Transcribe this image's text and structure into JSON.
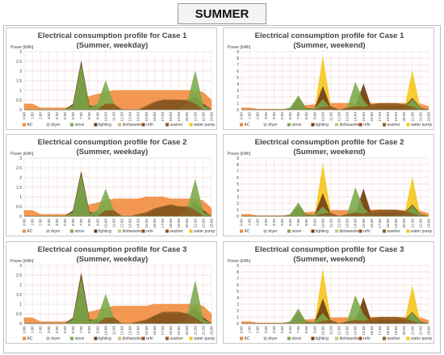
{
  "banner": "SUMMER",
  "ylabel": "Power [kWh]",
  "hours": [
    "0:00",
    "1:00",
    "2:00",
    "3:00",
    "4:00",
    "5:00",
    "6:00",
    "7:00",
    "8:00",
    "9:00",
    "10:00",
    "11:00",
    "12:00",
    "13:00",
    "14:00",
    "15:00",
    "16:00",
    "17:00",
    "18:00",
    "19:00",
    "20:00",
    "21:00",
    "22:00",
    "23:00"
  ],
  "legend": [
    "AC",
    "dryer",
    "stove",
    "lighting",
    "dishwasher",
    "refri",
    "washer",
    "water pump"
  ],
  "colors": {
    "AC": "#f08a3a",
    "dryer": "#b8b8b8",
    "stove": "#7aaa4a",
    "lighting": "#6d3a14",
    "dishwasher": "#d4c070",
    "refri": "#a0441a",
    "washer": "#8b5a20",
    "water pump": "#f5c518"
  },
  "panels": [
    {
      "title1": "Electrical consumption profile for Case 1",
      "title2": "(Summer, weekday)",
      "ymax": 3,
      "yticks": [
        "0",
        "0.5",
        "1",
        "1.5",
        "2",
        "2.5",
        "3"
      ]
    },
    {
      "title1": "Electrical consumption profile for Case 1",
      "title2": "(Summer, weekend)",
      "ymax": 9,
      "yticks": [
        "0",
        "1",
        "2",
        "3",
        "4",
        "5",
        "6",
        "7",
        "8",
        "9"
      ]
    },
    {
      "title1": "Electrical consumption profile for Case 2",
      "title2": "(Summer, weekday)",
      "ymax": 3,
      "yticks": [
        "0",
        "0.5",
        "1",
        "1.5",
        "2",
        "2.5",
        "3"
      ]
    },
    {
      "title1": "Electrical consumption profile for Case 2",
      "title2": "(Summer, weekend)",
      "ymax": 9,
      "yticks": [
        "0",
        "1",
        "2",
        "3",
        "4",
        "5",
        "6",
        "7",
        "8",
        "9"
      ]
    },
    {
      "title1": "Electrical consumption profile for Case 3",
      "title2": "(Summer, weekday)",
      "ymax": 3,
      "yticks": [
        "0",
        "0.5",
        "1",
        "1.5",
        "2",
        "2.5",
        "3"
      ]
    },
    {
      "title1": "Electrical consumption profile for Case 3",
      "title2": "(Summer, weekend)",
      "ymax": 9,
      "yticks": [
        "0",
        "1",
        "2",
        "3",
        "4",
        "5",
        "6",
        "7",
        "8",
        "9"
      ]
    }
  ],
  "chart_data": [
    {
      "type": "area",
      "ylim": [
        0,
        3
      ],
      "x": [
        "0:00",
        "1:00",
        "2:00",
        "3:00",
        "4:00",
        "5:00",
        "6:00",
        "7:00",
        "8:00",
        "9:00",
        "10:00",
        "11:00",
        "12:00",
        "13:00",
        "14:00",
        "15:00",
        "16:00",
        "17:00",
        "18:00",
        "19:00",
        "20:00",
        "21:00",
        "22:00",
        "23:00"
      ],
      "series": [
        {
          "name": "AC",
          "values": [
            0.3,
            0.3,
            0.1,
            0.1,
            0.1,
            0.1,
            0.2,
            0.5,
            0.7,
            0.8,
            0.9,
            1.0,
            1.0,
            1.0,
            1.0,
            1.0,
            1.0,
            1.0,
            1.0,
            1.0,
            1.0,
            1.0,
            0.9,
            0.5
          ]
        },
        {
          "name": "lighting",
          "values": [
            0,
            0,
            0,
            0,
            0,
            0,
            0.3,
            2.5,
            0.2,
            0.2,
            0.2,
            0.2,
            0,
            0,
            0,
            0.1,
            0.3,
            0.5,
            0.5,
            0.5,
            0.4,
            0.7,
            0.3,
            0
          ]
        },
        {
          "name": "stove",
          "values": [
            0,
            0,
            0,
            0,
            0,
            0,
            0.2,
            2.3,
            0.1,
            0.3,
            1.5,
            0.3,
            0,
            0,
            0,
            0,
            0,
            0,
            0,
            0,
            0.3,
            2.0,
            0.2,
            0
          ]
        },
        {
          "name": "washer",
          "values": [
            0,
            0,
            0,
            0,
            0,
            0,
            0,
            0,
            0,
            0,
            0.3,
            0.3,
            0,
            0,
            0,
            0.2,
            0.4,
            0.5,
            0.5,
            0.5,
            0.5,
            0.3,
            0,
            0
          ]
        }
      ]
    },
    {
      "type": "area",
      "ylim": [
        0,
        9
      ],
      "x": [
        "0:00",
        "1:00",
        "2:00",
        "3:00",
        "4:00",
        "5:00",
        "6:00",
        "7:00",
        "8:00",
        "9:00",
        "10:00",
        "11:00",
        "12:00",
        "13:00",
        "14:00",
        "15:00",
        "16:00",
        "17:00",
        "18:00",
        "19:00",
        "20:00",
        "21:00",
        "22:00",
        "23:00"
      ],
      "series": [
        {
          "name": "AC",
          "values": [
            0.3,
            0.3,
            0.1,
            0.1,
            0.1,
            0.1,
            0.2,
            0.5,
            0.7,
            0.8,
            0.9,
            1.0,
            1.0,
            1.0,
            1.0,
            1.0,
            1.0,
            1.0,
            1.0,
            1.0,
            1.0,
            1.0,
            0.9,
            0.5
          ]
        },
        {
          "name": "water pump",
          "values": [
            0,
            0,
            0,
            0,
            0,
            0,
            0,
            0,
            0,
            0,
            8.2,
            0.3,
            0,
            0,
            0,
            3.5,
            0,
            0,
            0,
            0,
            0,
            6.0,
            0,
            0
          ]
        },
        {
          "name": "lighting",
          "values": [
            0,
            0,
            0,
            0,
            0,
            0,
            0.2,
            1.8,
            0.2,
            0.2,
            3.6,
            0.2,
            0,
            0,
            0.4,
            4.0,
            0.2,
            0.5,
            0.6,
            0.6,
            0.5,
            1.8,
            0.3,
            0
          ]
        },
        {
          "name": "stove",
          "values": [
            0,
            0,
            0,
            0,
            0,
            0,
            0.3,
            2.2,
            0.1,
            0.2,
            1.6,
            0.2,
            0,
            0.3,
            4.2,
            1.4,
            0.1,
            0,
            0,
            0,
            0.3,
            1.6,
            0.2,
            0
          ]
        },
        {
          "name": "washer",
          "values": [
            0,
            0,
            0,
            0,
            0,
            0,
            0,
            0,
            0,
            0,
            0.4,
            0.5,
            0,
            0.3,
            0.5,
            0.4,
            0.8,
            1.0,
            1.0,
            1.0,
            0.8,
            0.4,
            0,
            0
          ]
        }
      ]
    },
    {
      "type": "area",
      "ylim": [
        0,
        3
      ],
      "x": [
        "0:00",
        "1:00",
        "2:00",
        "3:00",
        "4:00",
        "5:00",
        "6:00",
        "7:00",
        "8:00",
        "9:00",
        "10:00",
        "11:00",
        "12:00",
        "13:00",
        "14:00",
        "15:00",
        "16:00",
        "17:00",
        "18:00",
        "19:00",
        "20:00",
        "21:00",
        "22:00",
        "23:00"
      ],
      "series": [
        {
          "name": "AC",
          "values": [
            0.3,
            0.3,
            0.1,
            0.1,
            0.1,
            0.1,
            0.2,
            0.5,
            0.6,
            0.7,
            0.8,
            0.9,
            0.9,
            0.9,
            0.9,
            1.0,
            1.0,
            1.0,
            0.9,
            0.9,
            0.9,
            0.9,
            0.8,
            0.4
          ]
        },
        {
          "name": "lighting",
          "values": [
            0,
            0,
            0,
            0,
            0,
            0,
            0.3,
            2.3,
            0.2,
            0.2,
            0.2,
            0.2,
            0,
            0,
            0,
            0.1,
            0.3,
            0.5,
            0.5,
            0.5,
            0.4,
            0.7,
            0.3,
            0
          ]
        },
        {
          "name": "stove",
          "values": [
            0,
            0,
            0,
            0,
            0,
            0,
            0.2,
            2.1,
            0.1,
            0.3,
            1.4,
            0.3,
            0,
            0,
            0,
            0,
            0,
            0,
            0,
            0,
            0.3,
            1.9,
            0.2,
            0
          ]
        },
        {
          "name": "washer",
          "values": [
            0,
            0,
            0,
            0,
            0,
            0,
            0,
            0,
            0,
            0,
            0.3,
            0.3,
            0,
            0,
            0.1,
            0.2,
            0.4,
            0.5,
            0.6,
            0.5,
            0.5,
            0.3,
            0,
            0
          ]
        }
      ]
    },
    {
      "type": "area",
      "ylim": [
        0,
        9
      ],
      "x": [
        "0:00",
        "1:00",
        "2:00",
        "3:00",
        "4:00",
        "5:00",
        "6:00",
        "7:00",
        "8:00",
        "9:00",
        "10:00",
        "11:00",
        "12:00",
        "13:00",
        "14:00",
        "15:00",
        "16:00",
        "17:00",
        "18:00",
        "19:00",
        "20:00",
        "21:00",
        "22:00",
        "23:00"
      ],
      "series": [
        {
          "name": "AC",
          "values": [
            0.3,
            0.3,
            0.1,
            0.1,
            0.1,
            0.1,
            0.2,
            0.4,
            0.6,
            0.7,
            0.8,
            0.9,
            0.9,
            0.9,
            0.9,
            1.0,
            1.0,
            1.0,
            0.9,
            0.9,
            0.9,
            0.9,
            0.8,
            0.4
          ]
        },
        {
          "name": "water pump",
          "values": [
            0,
            0,
            0,
            0,
            0,
            0,
            0,
            0,
            0,
            0,
            8.0,
            0.3,
            0,
            0,
            0,
            3.8,
            0,
            0,
            0,
            0,
            0,
            6.0,
            0,
            0
          ]
        },
        {
          "name": "lighting",
          "values": [
            0,
            0,
            0,
            0,
            0,
            0,
            0.2,
            1.6,
            0.2,
            0.2,
            3.5,
            0.2,
            0,
            0,
            0.4,
            4.2,
            0.2,
            0.5,
            0.6,
            0.6,
            0.5,
            1.8,
            0.3,
            0
          ]
        },
        {
          "name": "stove",
          "values": [
            0,
            0,
            0,
            0,
            0,
            0,
            0.3,
            2.1,
            0.1,
            0.2,
            1.5,
            0.2,
            0,
            0.3,
            4.4,
            1.3,
            0.1,
            0,
            0,
            0,
            0.3,
            1.6,
            0.2,
            0
          ]
        },
        {
          "name": "washer",
          "values": [
            0,
            0,
            0,
            0,
            0,
            0,
            0,
            0,
            0,
            0,
            0.4,
            0.5,
            0,
            0.3,
            0.5,
            0.4,
            0.8,
            1.0,
            1.0,
            1.0,
            0.8,
            0.4,
            0,
            0
          ]
        }
      ]
    },
    {
      "type": "area",
      "ylim": [
        0,
        3
      ],
      "x": [
        "0:00",
        "1:00",
        "2:00",
        "3:00",
        "4:00",
        "5:00",
        "6:00",
        "7:00",
        "8:00",
        "9:00",
        "10:00",
        "11:00",
        "12:00",
        "13:00",
        "14:00",
        "15:00",
        "16:00",
        "17:00",
        "18:00",
        "19:00",
        "20:00",
        "21:00",
        "22:00",
        "23:00"
      ],
      "series": [
        {
          "name": "AC",
          "values": [
            0.3,
            0.3,
            0.1,
            0.1,
            0.1,
            0.1,
            0.2,
            0.5,
            0.6,
            0.7,
            0.8,
            0.9,
            0.9,
            0.9,
            0.9,
            0.9,
            1.0,
            1.0,
            1.0,
            1.0,
            1.0,
            1.0,
            0.9,
            0.5
          ]
        },
        {
          "name": "lighting",
          "values": [
            0,
            0,
            0,
            0,
            0,
            0,
            0.3,
            2.6,
            0.2,
            0.2,
            0.2,
            0.2,
            0,
            0,
            0,
            0.1,
            0.4,
            0.5,
            0.5,
            0.5,
            0.5,
            0.8,
            0.3,
            0
          ]
        },
        {
          "name": "stove",
          "values": [
            0,
            0,
            0,
            0,
            0,
            0,
            0.2,
            2.3,
            0.1,
            0.3,
            1.5,
            0.3,
            0,
            0,
            0,
            0,
            0,
            0,
            0,
            0,
            0.3,
            2.2,
            0.2,
            0
          ]
        },
        {
          "name": "washer",
          "values": [
            0,
            0,
            0,
            0,
            0,
            0,
            0,
            0,
            0,
            0,
            0.3,
            0.3,
            0,
            0,
            0.1,
            0.2,
            0.4,
            0.6,
            0.6,
            0.6,
            0.5,
            0.3,
            0,
            0
          ]
        }
      ]
    },
    {
      "type": "area",
      "ylim": [
        0,
        9
      ],
      "x": [
        "0:00",
        "1:00",
        "2:00",
        "3:00",
        "4:00",
        "5:00",
        "6:00",
        "7:00",
        "8:00",
        "9:00",
        "10:00",
        "11:00",
        "12:00",
        "13:00",
        "14:00",
        "15:00",
        "16:00",
        "17:00",
        "18:00",
        "19:00",
        "20:00",
        "21:00",
        "22:00",
        "23:00"
      ],
      "series": [
        {
          "name": "AC",
          "values": [
            0.3,
            0.3,
            0.1,
            0.1,
            0.1,
            0.1,
            0.2,
            0.5,
            0.6,
            0.7,
            0.8,
            0.9,
            0.9,
            0.9,
            0.9,
            1.0,
            1.0,
            1.0,
            1.0,
            1.0,
            1.0,
            1.0,
            0.9,
            0.5
          ]
        },
        {
          "name": "water pump",
          "values": [
            0,
            0,
            0,
            0,
            0,
            0,
            0,
            0,
            0,
            0,
            8.3,
            0.3,
            0,
            0,
            0,
            3.8,
            0,
            0,
            0,
            0,
            0,
            5.8,
            0,
            0
          ]
        },
        {
          "name": "lighting",
          "values": [
            0,
            0,
            0,
            0,
            0,
            0,
            0.2,
            1.8,
            0.2,
            0.2,
            3.8,
            0.2,
            0,
            0,
            0.4,
            4.0,
            0.2,
            0.5,
            0.6,
            0.6,
            0.5,
            1.8,
            0.3,
            0
          ]
        },
        {
          "name": "stove",
          "values": [
            0,
            0,
            0,
            0,
            0,
            0,
            0.3,
            2.3,
            0.1,
            0.2,
            1.6,
            0.2,
            0,
            0.3,
            4.3,
            1.4,
            0.1,
            0,
            0,
            0,
            0.3,
            1.7,
            0.2,
            0
          ]
        },
        {
          "name": "washer",
          "values": [
            0,
            0,
            0,
            0,
            0,
            0,
            0,
            0,
            0,
            0,
            0.4,
            0.5,
            0,
            0.3,
            0.5,
            0.4,
            0.8,
            1.0,
            1.0,
            1.0,
            0.8,
            0.4,
            0,
            0
          ]
        }
      ]
    }
  ]
}
